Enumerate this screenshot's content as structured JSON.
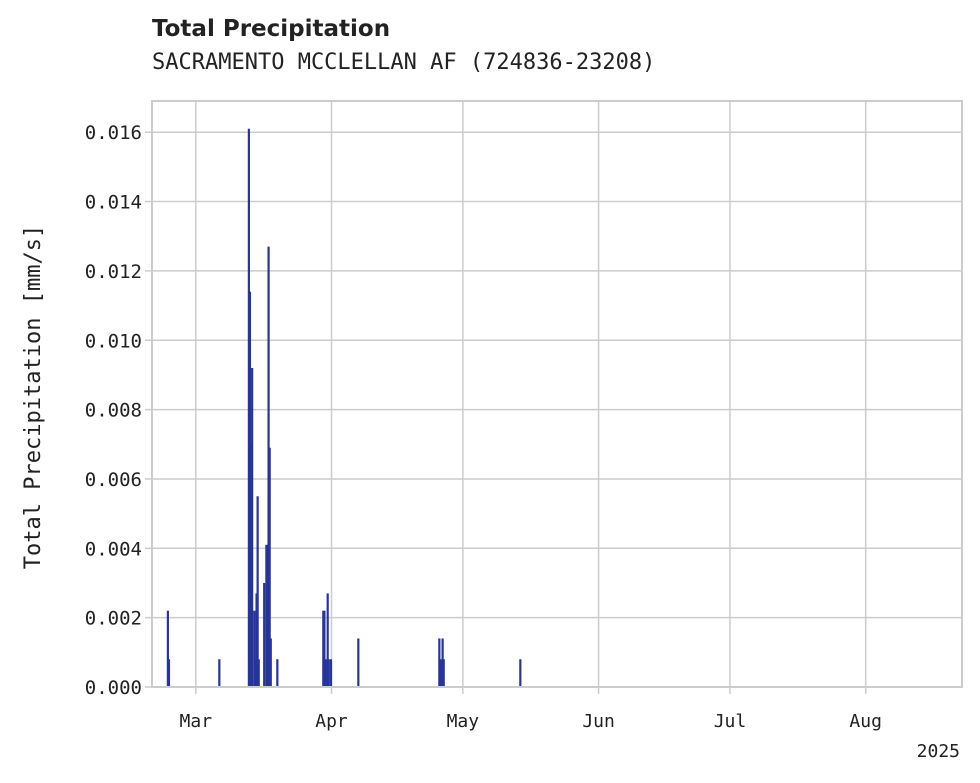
{
  "chart_data": {
    "type": "bar",
    "title": "Total Precipitation",
    "subtitle": "SACRAMENTO MCCLELLAN AF (724836-23208)",
    "xlabel": "",
    "ylabel": "Total Precipitation [mm/s]",
    "year_label": "2025",
    "xlim": [
      "2025-02-19",
      "2025-08-23"
    ],
    "ylim": [
      0,
      0.0169
    ],
    "grid": true,
    "bar_color": "#27359a",
    "x_ticks": [
      {
        "date": "2025-03-01",
        "label": "Mar"
      },
      {
        "date": "2025-04-01",
        "label": "Apr"
      },
      {
        "date": "2025-05-01",
        "label": "May"
      },
      {
        "date": "2025-06-01",
        "label": "Jun"
      },
      {
        "date": "2025-07-01",
        "label": "Jul"
      },
      {
        "date": "2025-08-01",
        "label": "Aug"
      }
    ],
    "y_ticks": [
      {
        "value": 0.0,
        "label": "0.000"
      },
      {
        "value": 0.002,
        "label": "0.002"
      },
      {
        "value": 0.004,
        "label": "0.004"
      },
      {
        "value": 0.006,
        "label": "0.006"
      },
      {
        "value": 0.008,
        "label": "0.008"
      },
      {
        "value": 0.01,
        "label": "0.010"
      },
      {
        "value": 0.012,
        "label": "0.012"
      },
      {
        "value": 0.014,
        "label": "0.014"
      },
      {
        "value": 0.016,
        "label": "0.016"
      }
    ],
    "series": [
      {
        "name": "Total Precipitation",
        "points": [
          {
            "x": "2025-02-22T12:00",
            "y": 0.0022
          },
          {
            "x": "2025-02-22T18:00",
            "y": 0.0008
          },
          {
            "x": "2025-03-06T06:00",
            "y": 0.0008
          },
          {
            "x": "2025-03-13T00:00",
            "y": 0.0161
          },
          {
            "x": "2025-03-13T06:00",
            "y": 0.0114
          },
          {
            "x": "2025-03-13T12:00",
            "y": 0.007
          },
          {
            "x": "2025-03-13T18:00",
            "y": 0.0092
          },
          {
            "x": "2025-03-14T06:00",
            "y": 0.0022
          },
          {
            "x": "2025-03-14T12:00",
            "y": 0.0008
          },
          {
            "x": "2025-03-14T18:00",
            "y": 0.0027
          },
          {
            "x": "2025-03-15T00:00",
            "y": 0.0055
          },
          {
            "x": "2025-03-15T06:00",
            "y": 0.0008
          },
          {
            "x": "2025-03-16T12:00",
            "y": 0.003
          },
          {
            "x": "2025-03-17T00:00",
            "y": 0.0041
          },
          {
            "x": "2025-03-17T06:00",
            "y": 0.0041
          },
          {
            "x": "2025-03-17T12:00",
            "y": 0.0127
          },
          {
            "x": "2025-03-17T18:00",
            "y": 0.0069
          },
          {
            "x": "2025-03-18T00:00",
            "y": 0.0014
          },
          {
            "x": "2025-03-19T12:00",
            "y": 0.0008
          },
          {
            "x": "2025-03-30T00:00",
            "y": 0.0022
          },
          {
            "x": "2025-03-30T06:00",
            "y": 0.0022
          },
          {
            "x": "2025-03-30T18:00",
            "y": 0.0008
          },
          {
            "x": "2025-03-31T00:00",
            "y": 0.0027
          },
          {
            "x": "2025-03-31T06:00",
            "y": 0.0008
          },
          {
            "x": "2025-03-31T18:00",
            "y": 0.0008
          },
          {
            "x": "2025-04-07T00:00",
            "y": 0.0014
          },
          {
            "x": "2025-04-25T12:00",
            "y": 0.0014
          },
          {
            "x": "2025-04-25T18:00",
            "y": 0.0008
          },
          {
            "x": "2025-04-26T06:00",
            "y": 0.0014
          },
          {
            "x": "2025-04-26T12:00",
            "y": 0.0008
          },
          {
            "x": "2025-05-14T00:00",
            "y": 0.0008
          }
        ]
      }
    ]
  }
}
